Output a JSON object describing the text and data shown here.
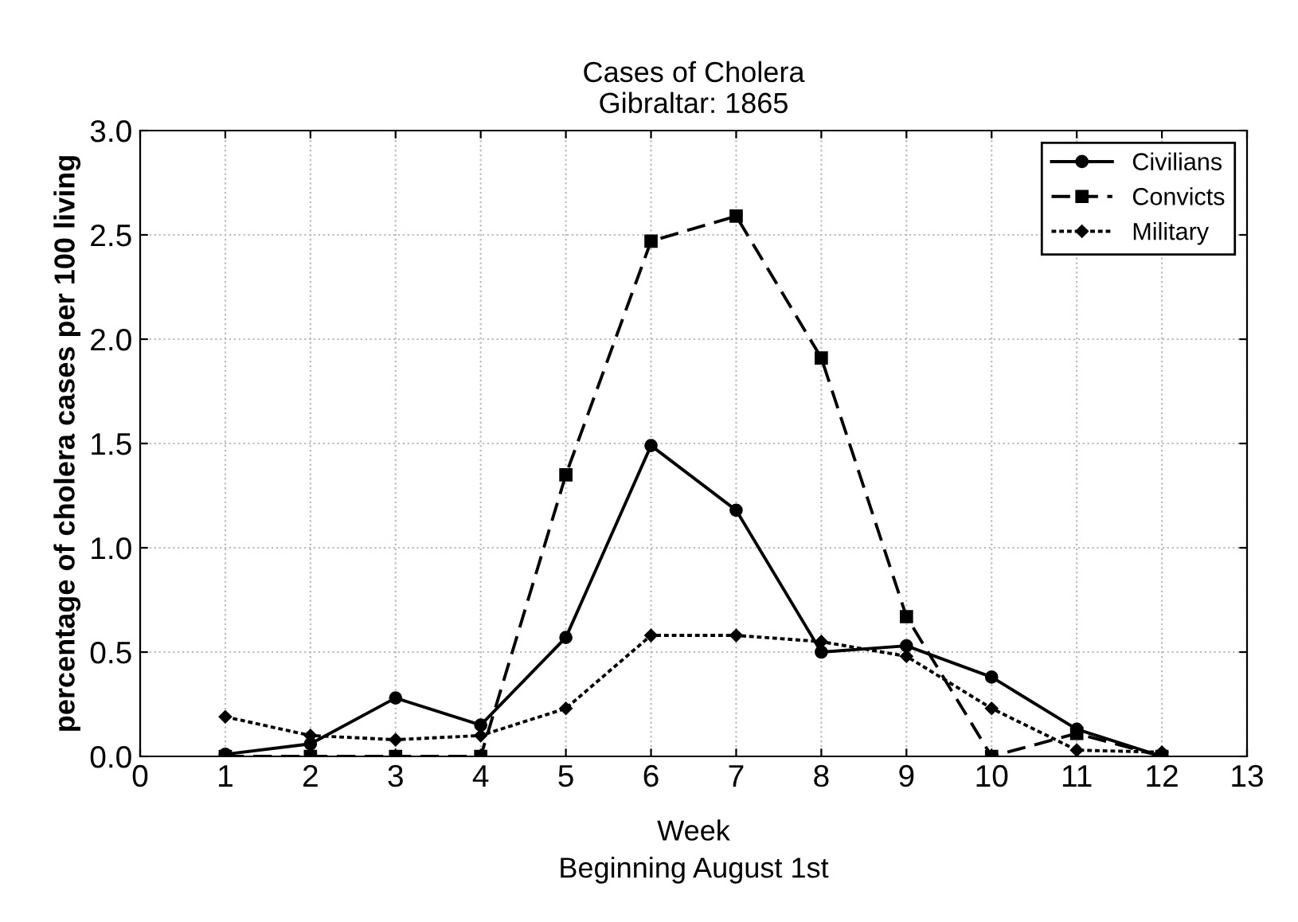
{
  "chart_data": {
    "type": "line",
    "title": "Cases of Cholera\nGibraltar: 1865",
    "xlabel": "Week\nBeginning August 1st",
    "ylabel": "percentage of cholera cases per 100 living",
    "x": [
      1,
      2,
      3,
      4,
      5,
      6,
      7,
      8,
      9,
      10,
      11,
      12
    ],
    "series": [
      {
        "name": "Civilians",
        "color": "#000000",
        "marker": "circle",
        "line_style": "solid",
        "values": [
          0.01,
          0.06,
          0.28,
          0.15,
          0.57,
          1.49,
          1.18,
          0.5,
          0.53,
          0.38,
          0.13,
          0.0
        ]
      },
      {
        "name": "Convicts",
        "color": "#000000",
        "marker": "square",
        "line_style": "dashed",
        "values": [
          0.0,
          0.0,
          0.0,
          0.0,
          1.35,
          2.47,
          2.59,
          1.91,
          0.67,
          0.0,
          0.11,
          0.0
        ]
      },
      {
        "name": "Military",
        "color": "#000000",
        "marker": "diamond",
        "line_style": "dotted",
        "values": [
          0.19,
          0.1,
          0.08,
          0.1,
          0.23,
          0.58,
          0.58,
          0.55,
          0.48,
          0.23,
          0.03,
          0.02
        ]
      }
    ],
    "xlim": [
      0,
      13
    ],
    "xticks": [
      0,
      1,
      2,
      3,
      4,
      5,
      6,
      7,
      8,
      9,
      10,
      11,
      12,
      13
    ],
    "ylim": [
      0,
      3.0
    ],
    "yticks": [
      {
        "value": 0,
        "label": "0.0"
      },
      0.5,
      {
        "value": 1,
        "label": "1.0"
      },
      1.5,
      {
        "value": 2,
        "label": "2.0"
      },
      2.5,
      {
        "value": 3,
        "label": "3.0"
      }
    ],
    "grid": true,
    "legend": "top right"
  }
}
